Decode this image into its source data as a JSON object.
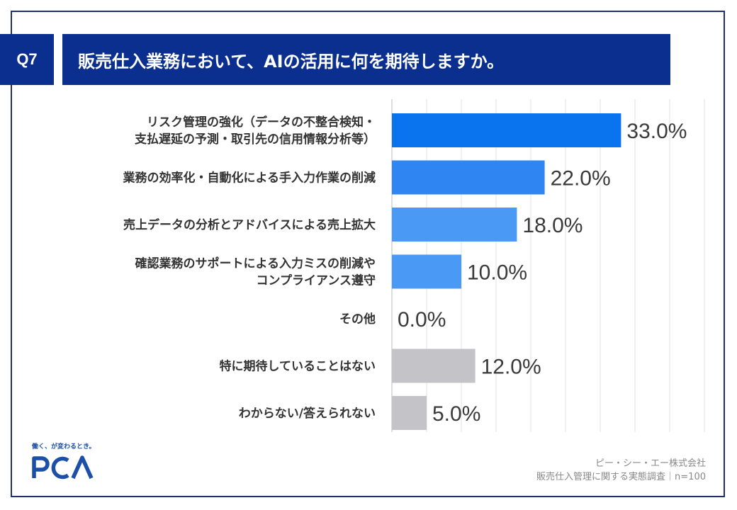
{
  "header": {
    "question_no": "Q7",
    "title": "販売仕入業務において、AIの活用に何を期待しますか。"
  },
  "chart_data": {
    "type": "bar",
    "orientation": "horizontal",
    "categories": [
      [
        "リスク管理の強化（データの不整合検知・",
        "支払遅延の予測・取引先の信用情報分析等）"
      ],
      [
        "業務の効率化・自動化による手入力作業の削減"
      ],
      [
        "売上データの分析とアドバイスによる売上拡大"
      ],
      [
        "確認業務のサポートによる入力ミスの削減や",
        "コンプライアンス遵守"
      ],
      [
        "その他"
      ],
      [
        "特に期待していることはない"
      ],
      [
        "わからない/答えられない"
      ]
    ],
    "values": [
      33.0,
      22.0,
      18.0,
      10.0,
      0.0,
      12.0,
      5.0
    ],
    "value_labels": [
      "33.0%",
      "22.0%",
      "18.0%",
      "10.0%",
      "0.0%",
      "12.0%",
      "5.0%"
    ],
    "bar_colors": [
      "#0a74ee",
      "#2f86f2",
      "#4a9af5",
      "#4a9af5",
      "#4a9af5",
      "#c3c3c8",
      "#c3c3c8"
    ],
    "xlim": [
      0,
      50
    ],
    "grid": true
  },
  "footer": {
    "company": "ピー・シー・エー株式会社",
    "survey": "販売仕入管理に関する実態調査｜n=100"
  },
  "brand": {
    "tagline": "働く、が変わるとき。",
    "logo_text": "PCA",
    "color": "#1b4fa8"
  }
}
